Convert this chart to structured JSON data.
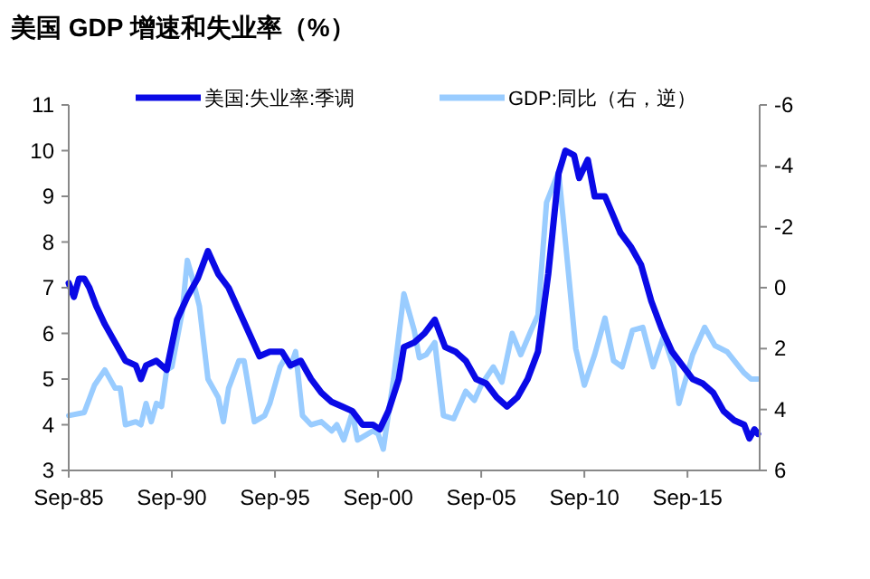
{
  "chart_data": {
    "type": "line",
    "title": "美国 GDP 增速和失业率（%）",
    "xlim": [
      "1985-09",
      "2019-03"
    ],
    "xticks": [
      {
        "value": "1985-09",
        "label": "Sep-85"
      },
      {
        "value": "1990-09",
        "label": "Sep-90"
      },
      {
        "value": "1995-09",
        "label": "Sep-95"
      },
      {
        "value": "2000-09",
        "label": "Sep-00"
      },
      {
        "value": "2005-09",
        "label": "Sep-05"
      },
      {
        "value": "2010-09",
        "label": "Sep-10"
      },
      {
        "value": "2015-09",
        "label": "Sep-15"
      }
    ],
    "ylim": [
      3,
      11
    ],
    "yticks": [
      3,
      4,
      5,
      6,
      7,
      8,
      9,
      10,
      11
    ],
    "y2lim": [
      6,
      -6
    ],
    "y2ticks": [
      -6,
      -4,
      -2,
      0,
      2,
      4,
      6
    ],
    "grid": false,
    "legend": "top",
    "marker": "none",
    "line_style": "solid",
    "series": [
      {
        "name": "美国:失业率:季调",
        "color": "#0a0ae6",
        "x": [
          "1985-09",
          "1985-12",
          "1986-03",
          "1986-06",
          "1986-09",
          "1987-01",
          "1987-06",
          "1987-12",
          "1988-06",
          "1988-12",
          "1989-03",
          "1989-06",
          "1989-12",
          "1990-06",
          "1990-12",
          "1991-06",
          "1991-12",
          "1992-06",
          "1992-12",
          "1993-06",
          "1993-12",
          "1994-06",
          "1994-12",
          "1995-06",
          "1996-01",
          "1996-06",
          "1996-12",
          "1997-06",
          "1997-12",
          "1998-06",
          "1998-12",
          "1999-06",
          "1999-12",
          "2000-06",
          "2000-10",
          "2001-03",
          "2001-09",
          "2001-12",
          "2002-06",
          "2002-12",
          "2003-06",
          "2003-12",
          "2004-06",
          "2004-12",
          "2005-06",
          "2005-12",
          "2006-06",
          "2006-12",
          "2007-06",
          "2007-12",
          "2008-06",
          "2008-12",
          "2009-06",
          "2009-10",
          "2010-03",
          "2010-06",
          "2010-11",
          "2011-03",
          "2011-09",
          "2012-06",
          "2012-12",
          "2013-06",
          "2013-12",
          "2014-06",
          "2014-12",
          "2015-06",
          "2015-12",
          "2016-06",
          "2016-12",
          "2017-06",
          "2017-12",
          "2018-06",
          "2018-09",
          "2018-12",
          "2019-02"
        ],
        "values": [
          7.1,
          6.8,
          7.2,
          7.2,
          7.0,
          6.6,
          6.2,
          5.8,
          5.4,
          5.3,
          5.0,
          5.3,
          5.4,
          5.2,
          6.3,
          6.8,
          7.2,
          7.8,
          7.3,
          7.0,
          6.5,
          6.0,
          5.5,
          5.6,
          5.6,
          5.3,
          5.4,
          5.0,
          4.7,
          4.5,
          4.4,
          4.3,
          4.0,
          4.0,
          3.9,
          4.3,
          5.0,
          5.7,
          5.8,
          6.0,
          6.3,
          5.7,
          5.6,
          5.4,
          5.0,
          4.9,
          4.6,
          4.4,
          4.6,
          5.0,
          5.6,
          7.3,
          9.5,
          10.0,
          9.9,
          9.4,
          9.8,
          9.0,
          9.0,
          8.2,
          7.9,
          7.5,
          6.7,
          6.1,
          5.6,
          5.3,
          5.0,
          4.9,
          4.7,
          4.3,
          4.1,
          4.0,
          3.7,
          3.9,
          3.8
        ]
      },
      {
        "name": "GDP:同比（右，逆）",
        "color": "#99ccff",
        "axis": "y2",
        "x": [
          "1985-09",
          "1986-06",
          "1986-12",
          "1987-06",
          "1987-12",
          "1988-03",
          "1988-06",
          "1988-12",
          "1989-03",
          "1989-06",
          "1989-09",
          "1989-12",
          "1990-03",
          "1990-06",
          "1990-09",
          "1991-03",
          "1991-06",
          "1991-09",
          "1992-01",
          "1992-06",
          "1992-12",
          "1993-03",
          "1993-06",
          "1993-12",
          "1994-03",
          "1994-09",
          "1995-03",
          "1995-06",
          "1995-12",
          "1996-03",
          "1996-06",
          "1996-09",
          "1997-01",
          "1997-06",
          "1997-12",
          "1998-06",
          "1998-09",
          "1999-01",
          "1999-06",
          "1999-09",
          "2000-03",
          "2000-06",
          "2000-09",
          "2000-12",
          "2001-06",
          "2001-12",
          "2002-06",
          "2002-09",
          "2003-01",
          "2003-06",
          "2003-11",
          "2004-05",
          "2004-12",
          "2005-05",
          "2005-09",
          "2006-04",
          "2006-09",
          "2007-03",
          "2007-08",
          "2008-02",
          "2008-06",
          "2008-11",
          "2009-06",
          "2009-09",
          "2010-04",
          "2010-09",
          "2011-03",
          "2011-09",
          "2012-02",
          "2012-07",
          "2013-01",
          "2013-07",
          "2014-01",
          "2014-07",
          "2015-01",
          "2015-04",
          "2015-12",
          "2016-07",
          "2017-01",
          "2017-08",
          "2018-06",
          "2018-10",
          "2019-02"
        ],
        "values": [
          4.2,
          4.1,
          3.2,
          2.7,
          3.3,
          3.3,
          4.5,
          4.4,
          4.5,
          3.8,
          4.4,
          3.8,
          3.9,
          2.7,
          2.6,
          0.8,
          -0.9,
          -0.3,
          0.6,
          3.0,
          3.6,
          4.4,
          3.3,
          2.4,
          2.4,
          4.4,
          4.2,
          3.8,
          2.6,
          2.3,
          2.6,
          2.1,
          4.2,
          4.5,
          4.4,
          4.7,
          4.5,
          5.0,
          4.1,
          5.0,
          4.8,
          4.7,
          4.8,
          5.3,
          3.0,
          0.2,
          1.4,
          2.3,
          2.2,
          1.8,
          4.2,
          4.3,
          3.4,
          3.7,
          3.2,
          2.6,
          3.1,
          1.5,
          2.2,
          1.4,
          0.9,
          -2.8,
          -3.8,
          -2.1,
          2.0,
          3.2,
          2.2,
          1.0,
          2.4,
          2.6,
          1.4,
          1.3,
          2.6,
          1.6,
          2.6,
          3.8,
          2.2,
          1.3,
          1.9,
          2.1,
          2.8,
          3.0,
          3.0
        ]
      }
    ]
  }
}
